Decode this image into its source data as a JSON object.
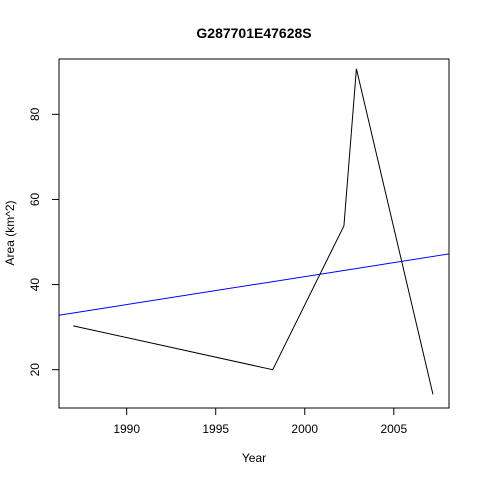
{
  "chart_data": {
    "type": "line",
    "title": "G287701E47628S",
    "xlabel": "Year",
    "ylabel": "Area (km^2)",
    "xlim": [
      1986.2,
      2008.1
    ],
    "ylim": [
      11,
      93
    ],
    "x_ticks": [
      1990,
      1995,
      2000,
      2005
    ],
    "y_ticks": [
      20,
      40,
      60,
      80
    ],
    "grid": false,
    "series": [
      {
        "color": "#000000",
        "x": [
          1987.0,
          1998.2,
          2002.2,
          2002.9,
          2007.2
        ],
        "y": [
          30.3,
          20.0,
          53.8,
          90.7,
          14.2
        ]
      }
    ],
    "trend": {
      "color": "#0000ff",
      "x": [
        1986.2,
        2008.1
      ],
      "y": [
        32.8,
        47.2
      ]
    }
  }
}
